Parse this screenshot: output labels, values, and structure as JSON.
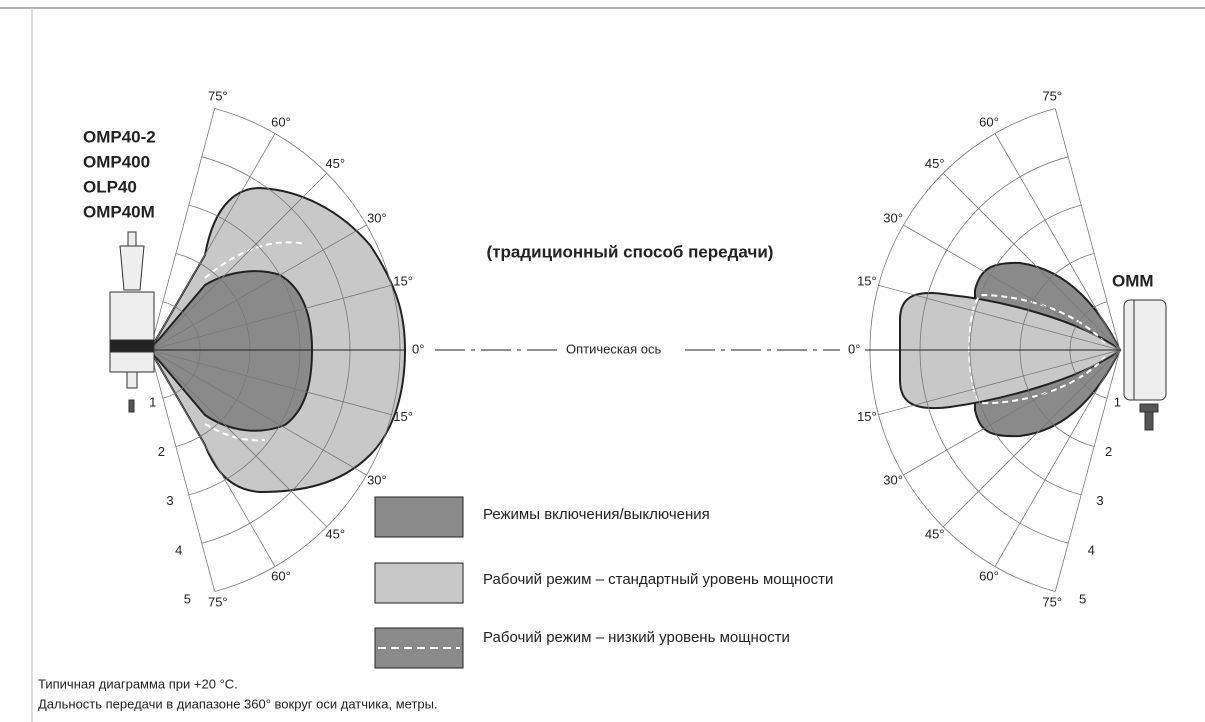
{
  "left_device": {
    "labels": [
      "OMP40-2",
      "OMP400",
      "OLP40",
      "OMP40M"
    ]
  },
  "right_device": {
    "label": "ОММ"
  },
  "subtitle": "(традиционный способ передачи)",
  "axis": {
    "left_zero": "0°",
    "caption": "Оптическая ось",
    "right_zero": "0°"
  },
  "polar": {
    "angles": [
      "15°",
      "30°",
      "45°",
      "60°",
      "75°"
    ],
    "distances": [
      "1",
      "2",
      "3",
      "4",
      "5"
    ]
  },
  "legend": [
    {
      "label": "Режимы включения/выключения"
    },
    {
      "label": "Рабочий режим – стандартный уровень мощности"
    },
    {
      "label": "Рабочий режим – низкий уровень мощности"
    }
  ],
  "notes": [
    "Типичная диаграмма при +20 °C.",
    "Дальность передачи в диапазоне 360° вокруг оси датчика, метры."
  ]
}
